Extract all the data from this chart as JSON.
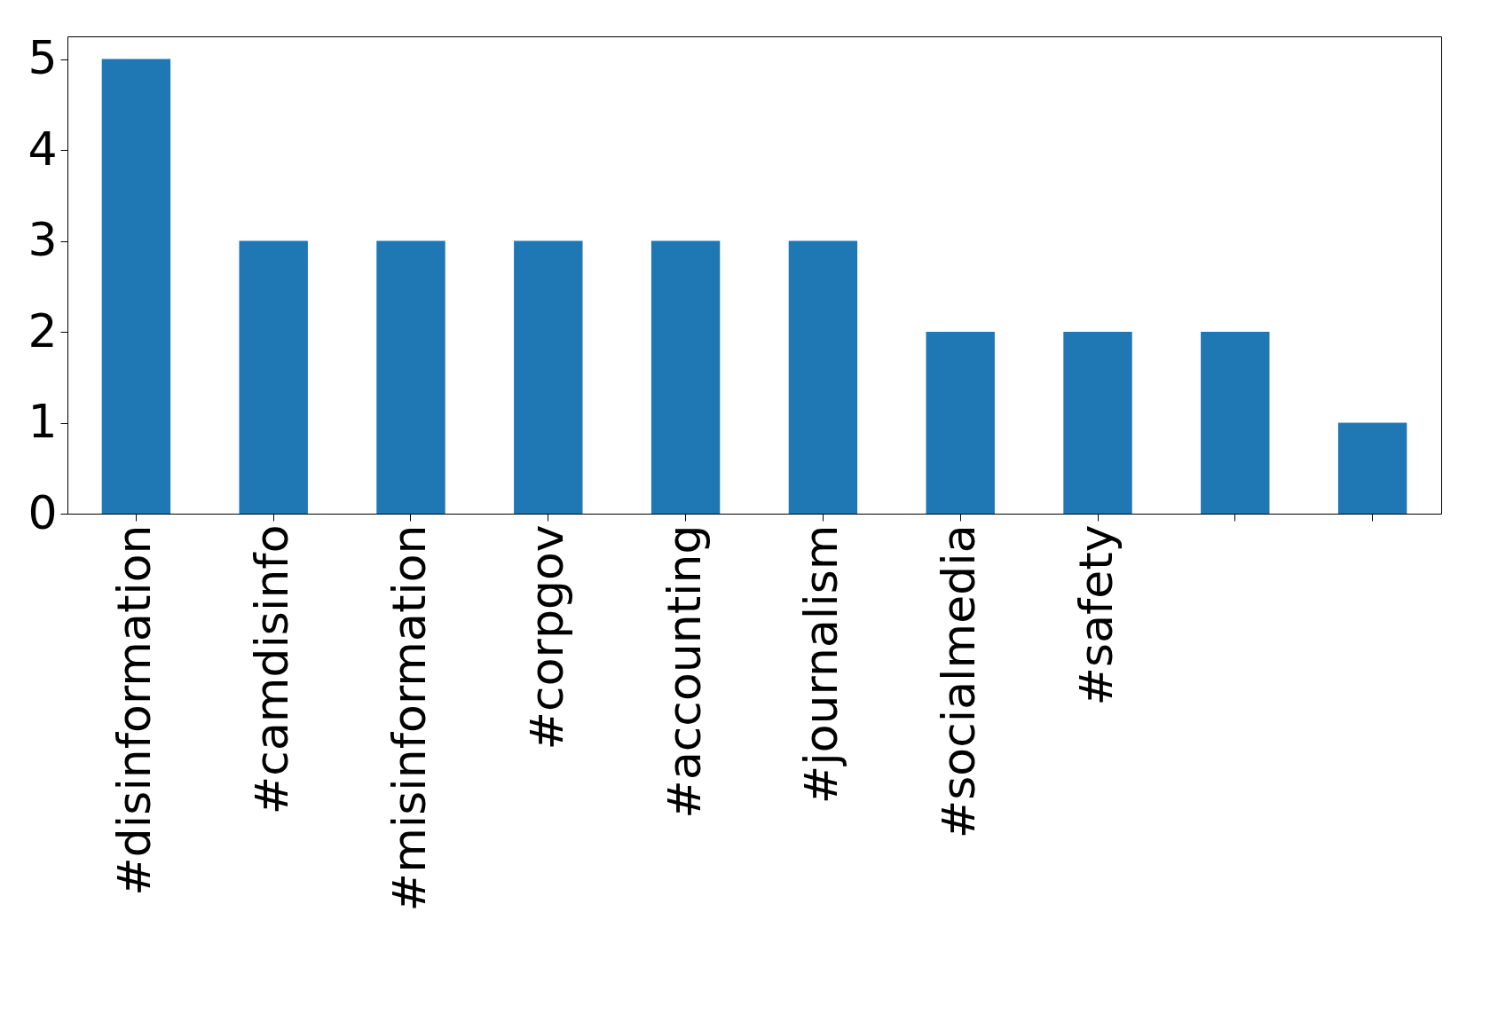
{
  "chart_data": {
    "type": "bar",
    "categories": [
      "#disinformation",
      "#camdisinfo",
      "#misinformation",
      "#corpgov",
      "#accounting",
      "#journalism",
      "#socialmedia",
      "#safety",
      null,
      null
    ],
    "values": [
      5,
      3,
      3,
      3,
      3,
      3,
      2,
      2,
      2,
      1
    ],
    "color": "#1f77b4",
    "ylim": [
      0,
      5.25
    ],
    "yticks": [
      0,
      1,
      2,
      3,
      4,
      5
    ],
    "grid": false
  }
}
